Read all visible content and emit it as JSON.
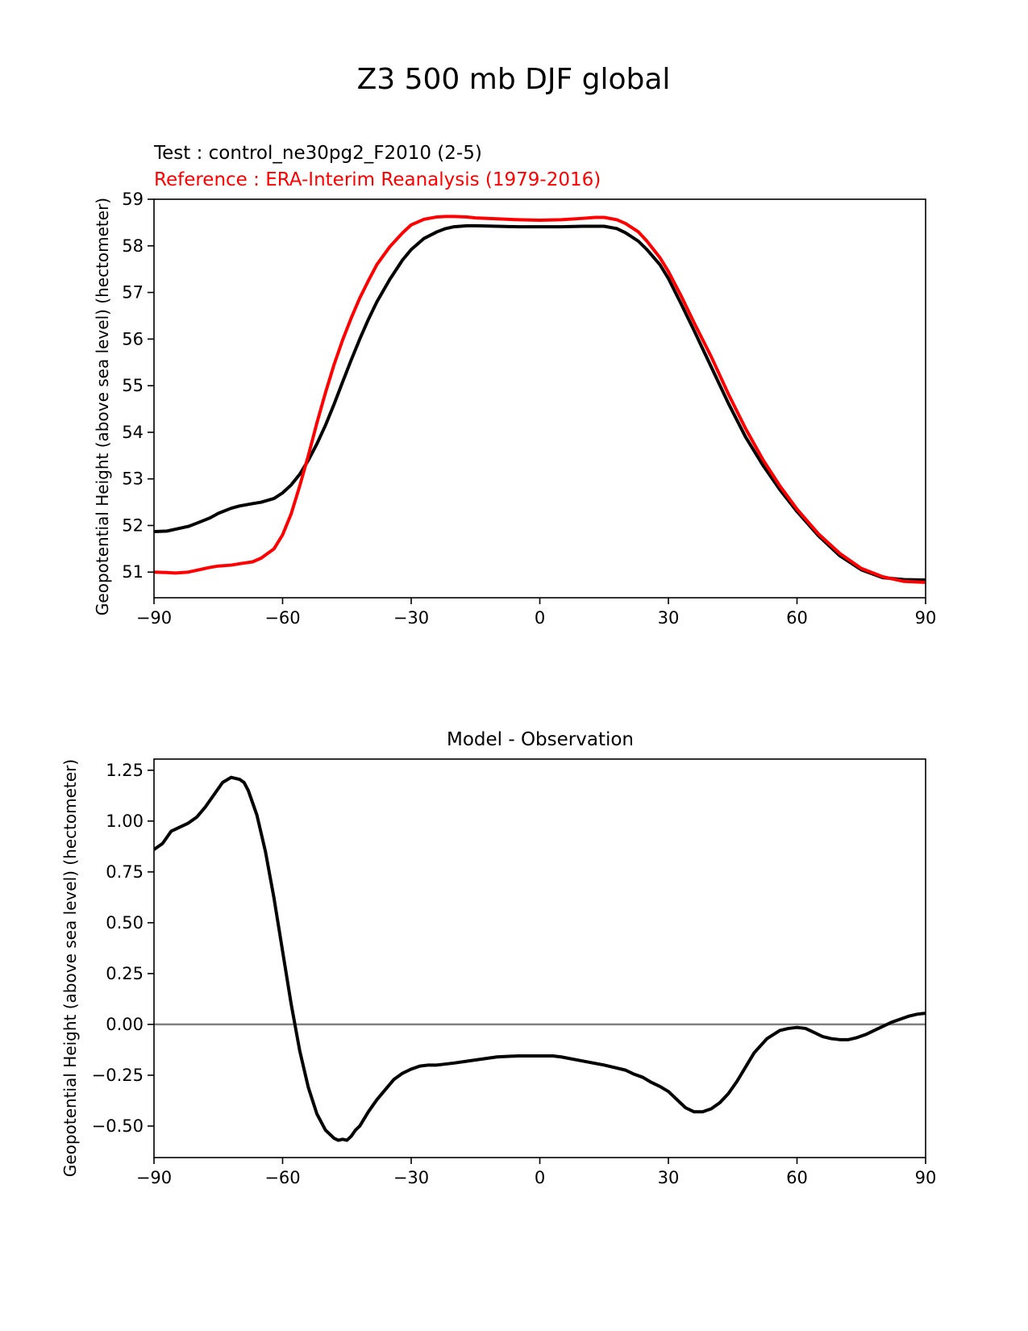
{
  "figure": {
    "suptitle": "Z3 500 mb DJF global"
  },
  "chart_data": [
    {
      "type": "line",
      "test_label": "Test : control_ne30pg2_F2010 (2-5)",
      "reference_label": "Reference : ERA-Interim Reanalysis (1979-2016)",
      "xlabel": "",
      "ylabel": "Geopotential Height (above sea level) (hectometer)",
      "xlim": [
        -90,
        90
      ],
      "ylim": [
        50.45,
        59.0
      ],
      "xticks": [
        -90,
        -60,
        -30,
        0,
        30,
        60,
        90
      ],
      "xtick_labels": [
        "−90",
        "−60",
        "−30",
        "0",
        "30",
        "60",
        "90"
      ],
      "yticks": [
        51,
        52,
        53,
        54,
        55,
        56,
        57,
        58,
        59
      ],
      "ytick_labels": [
        "51",
        "52",
        "53",
        "54",
        "55",
        "56",
        "57",
        "58",
        "59"
      ],
      "series": [
        {
          "name": "Test",
          "color": "#000000",
          "x": [
            -90,
            -87,
            -85,
            -82,
            -80,
            -77,
            -75,
            -72,
            -70,
            -67,
            -65,
            -62,
            -60,
            -58,
            -56,
            -54,
            -52,
            -50,
            -48,
            -46,
            -44,
            -42,
            -40,
            -38,
            -35,
            -32,
            -30,
            -27,
            -24,
            -22,
            -20,
            -17,
            -15,
            -10,
            -5,
            0,
            5,
            10,
            15,
            18,
            20,
            23,
            25,
            28,
            30,
            33,
            36,
            40,
            44,
            48,
            52,
            56,
            60,
            65,
            70,
            75,
            80,
            85,
            90
          ],
          "y": [
            51.87,
            51.88,
            51.92,
            51.98,
            52.05,
            52.16,
            52.26,
            52.37,
            52.42,
            52.47,
            52.5,
            52.58,
            52.7,
            52.87,
            53.1,
            53.4,
            53.75,
            54.15,
            54.6,
            55.08,
            55.55,
            56.0,
            56.42,
            56.8,
            57.28,
            57.7,
            57.92,
            58.16,
            58.3,
            58.37,
            58.41,
            58.43,
            58.43,
            58.42,
            58.41,
            58.41,
            58.41,
            58.42,
            58.42,
            58.37,
            58.28,
            58.1,
            57.92,
            57.6,
            57.3,
            56.75,
            56.18,
            55.4,
            54.62,
            53.9,
            53.3,
            52.77,
            52.3,
            51.78,
            51.35,
            51.05,
            50.88,
            50.84,
            50.83
          ]
        },
        {
          "name": "Reference",
          "color": "#ff0000",
          "x": [
            -90,
            -87,
            -85,
            -82,
            -80,
            -77,
            -75,
            -72,
            -70,
            -67,
            -65,
            -62,
            -60,
            -58,
            -56,
            -54,
            -52,
            -50,
            -48,
            -46,
            -44,
            -42,
            -40,
            -38,
            -35,
            -32,
            -30,
            -27,
            -24,
            -22,
            -20,
            -17,
            -15,
            -10,
            -5,
            0,
            5,
            10,
            13,
            15,
            18,
            20,
            23,
            25,
            28,
            30,
            33,
            36,
            40,
            44,
            48,
            52,
            56,
            60,
            65,
            70,
            75,
            80,
            85,
            90
          ],
          "y": [
            51.0,
            50.99,
            50.98,
            51.0,
            51.04,
            51.1,
            51.13,
            51.15,
            51.18,
            51.22,
            51.3,
            51.5,
            51.8,
            52.25,
            52.85,
            53.5,
            54.2,
            54.85,
            55.45,
            55.98,
            56.45,
            56.88,
            57.25,
            57.6,
            57.98,
            58.28,
            58.45,
            58.57,
            58.62,
            58.63,
            58.63,
            58.62,
            58.6,
            58.58,
            58.56,
            58.55,
            58.56,
            58.59,
            58.61,
            58.61,
            58.56,
            58.48,
            58.3,
            58.1,
            57.75,
            57.45,
            56.92,
            56.35,
            55.62,
            54.82,
            54.08,
            53.42,
            52.85,
            52.35,
            51.82,
            51.4,
            51.08,
            50.9,
            50.8,
            50.78
          ]
        }
      ]
    },
    {
      "type": "line",
      "title": "Model - Observation",
      "xlabel": "",
      "ylabel": "Geopotential Height (above sea level) (hectometer)",
      "xlim": [
        -90,
        90
      ],
      "ylim": [
        -0.655,
        1.305
      ],
      "xticks": [
        -90,
        -60,
        -30,
        0,
        30,
        60,
        90
      ],
      "xtick_labels": [
        "−90",
        "−60",
        "−30",
        "0",
        "30",
        "60",
        "90"
      ],
      "yticks": [
        -0.5,
        -0.25,
        0.0,
        0.25,
        0.5,
        0.75,
        1.0,
        1.25
      ],
      "ytick_labels": [
        "−0.50",
        "−0.25",
        "0.00",
        "0.25",
        "0.50",
        "0.75",
        "1.00",
        "1.25"
      ],
      "zero_line": {
        "value": 0.0,
        "color": "#808080"
      },
      "series": [
        {
          "name": "Model - Observation",
          "color": "#000000",
          "x": [
            -90,
            -88,
            -86,
            -84,
            -82,
            -80,
            -78,
            -76,
            -74,
            -72,
            -70,
            -69,
            -68,
            -66,
            -64,
            -62,
            -60,
            -58,
            -56,
            -54,
            -52,
            -50,
            -48,
            -47,
            -46,
            -45,
            -44,
            -43,
            -42,
            -40,
            -38,
            -36,
            -34,
            -32,
            -30,
            -28,
            -26,
            -24,
            -22,
            -20,
            -15,
            -10,
            -5,
            0,
            3,
            5,
            10,
            15,
            20,
            22,
            24,
            26,
            28,
            30,
            32,
            34,
            36,
            38,
            40,
            42,
            44,
            46,
            48,
            50,
            53,
            56,
            58,
            60,
            62,
            64,
            66,
            68,
            70,
            72,
            74,
            76,
            78,
            80,
            82,
            84,
            86,
            88,
            90
          ],
          "y": [
            0.86,
            0.89,
            0.95,
            0.97,
            0.99,
            1.02,
            1.07,
            1.13,
            1.19,
            1.215,
            1.205,
            1.19,
            1.15,
            1.03,
            0.85,
            0.62,
            0.36,
            0.1,
            -0.13,
            -0.31,
            -0.44,
            -0.52,
            -0.56,
            -0.57,
            -0.565,
            -0.57,
            -0.55,
            -0.52,
            -0.5,
            -0.43,
            -0.37,
            -0.32,
            -0.27,
            -0.24,
            -0.22,
            -0.205,
            -0.2,
            -0.2,
            -0.195,
            -0.19,
            -0.175,
            -0.16,
            -0.155,
            -0.155,
            -0.155,
            -0.16,
            -0.18,
            -0.2,
            -0.225,
            -0.245,
            -0.26,
            -0.285,
            -0.305,
            -0.33,
            -0.37,
            -0.41,
            -0.43,
            -0.43,
            -0.415,
            -0.385,
            -0.34,
            -0.28,
            -0.21,
            -0.14,
            -0.07,
            -0.03,
            -0.02,
            -0.015,
            -0.02,
            -0.04,
            -0.06,
            -0.07,
            -0.075,
            -0.075,
            -0.065,
            -0.05,
            -0.03,
            -0.01,
            0.01,
            0.025,
            0.04,
            0.05,
            0.055
          ]
        }
      ]
    }
  ]
}
